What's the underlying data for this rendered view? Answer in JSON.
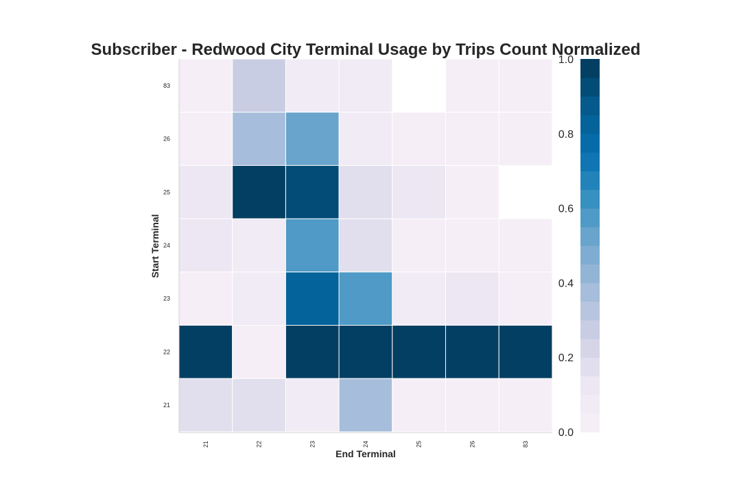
{
  "chart_data": {
    "type": "heatmap",
    "title": "Subscriber - Redwood City Terminal Usage by Trips Count Normalized",
    "xlabel": "End Terminal",
    "ylabel": "Start Terminal",
    "x_categories": [
      "21",
      "22",
      "23",
      "24",
      "25",
      "26",
      "83"
    ],
    "y_categories": [
      "83",
      "26",
      "25",
      "24",
      "23",
      "22",
      "21"
    ],
    "values": [
      [
        0.02,
        0.27,
        0.05,
        0.06,
        null,
        0.03,
        0.02
      ],
      [
        0.02,
        0.35,
        0.52,
        0.05,
        0.03,
        0.03,
        0.03
      ],
      [
        0.12,
        1.0,
        0.94,
        0.17,
        0.11,
        0.03,
        null
      ],
      [
        0.12,
        0.06,
        0.58,
        0.19,
        0.03,
        0.03,
        0.03
      ],
      [
        0.02,
        0.06,
        0.82,
        0.58,
        0.07,
        0.11,
        0.03
      ],
      [
        1.0,
        0.02,
        1.0,
        1.0,
        1.0,
        1.0,
        1.0
      ],
      [
        0.18,
        0.17,
        0.05,
        0.36,
        0.03,
        0.03,
        0.03
      ]
    ],
    "colorbar": {
      "vmin": 0.0,
      "vmax": 1.0,
      "ticks": [
        "0.0",
        "0.2",
        "0.4",
        "0.6",
        "0.8",
        "1.0"
      ],
      "colormap": "PuBu",
      "levels": 20
    }
  }
}
